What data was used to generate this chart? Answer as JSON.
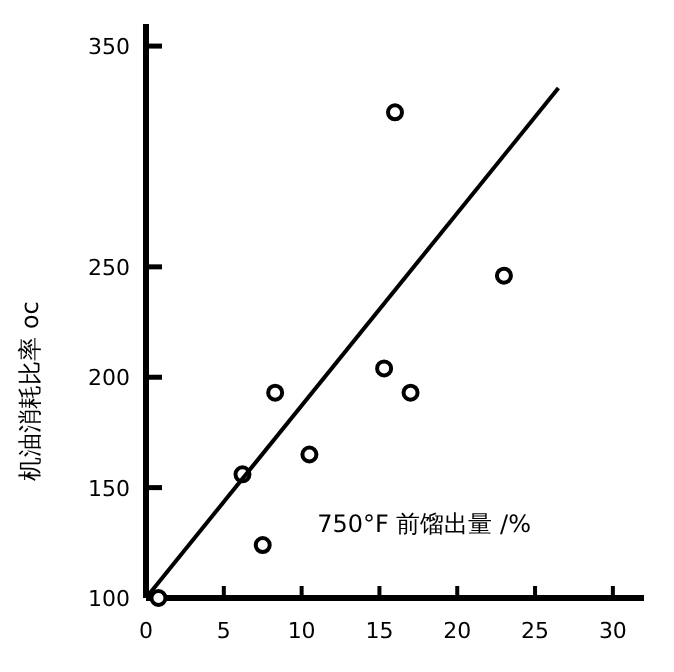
{
  "chart_data": {
    "type": "scatter",
    "xlabel": "750°F 前馏出量 /%",
    "ylabel": "机油消耗比率 oc",
    "xlim": [
      0,
      32
    ],
    "ylim": [
      100,
      360
    ],
    "xticks": [
      0,
      5,
      10,
      15,
      20,
      25,
      30
    ],
    "yticks": [
      100,
      150,
      200,
      250,
      350
    ],
    "grid": false,
    "series": [
      {
        "marker": "circle",
        "color": "#000000",
        "x": [
          0.8,
          6.2,
          7.5,
          8.3,
          10.5,
          15.3,
          17,
          16,
          23
        ],
        "values": [
          100,
          156,
          124,
          193,
          165,
          204,
          193,
          320,
          246
        ]
      },
      {
        "type": "line",
        "marker": "none",
        "color": "#000000",
        "line_style": "solid",
        "x": [
          0,
          26.5
        ],
        "values": [
          100,
          331
        ]
      }
    ]
  }
}
